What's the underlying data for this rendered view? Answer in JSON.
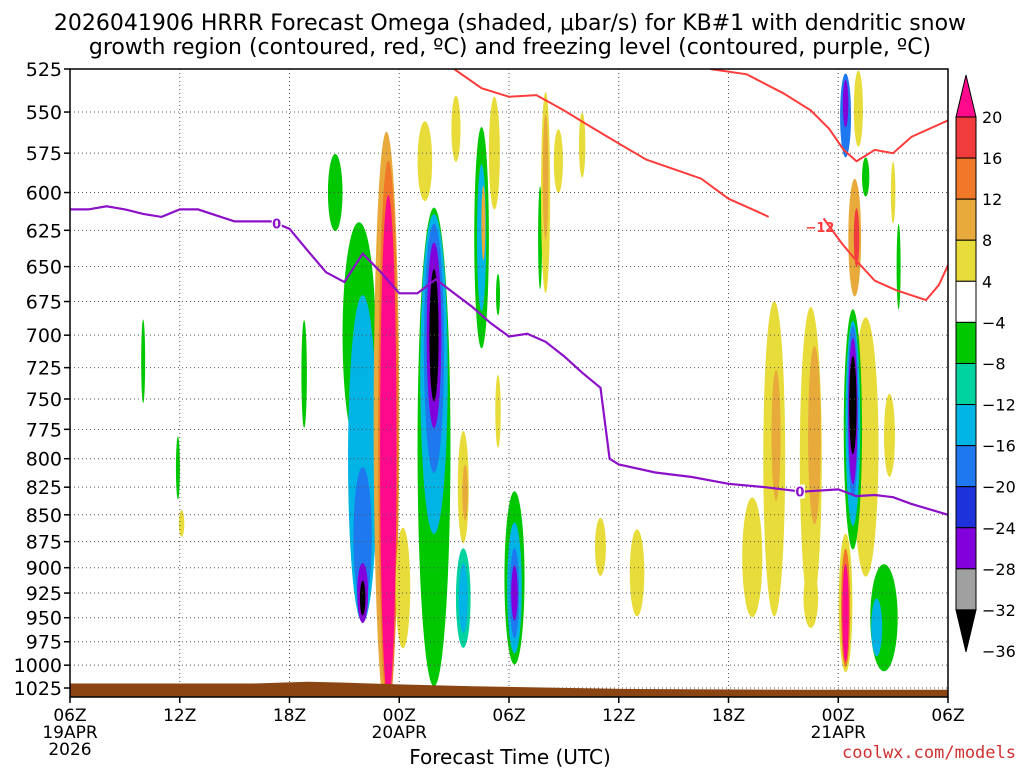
{
  "chart_data": {
    "type": "heatmap",
    "title_line1": "2026041906 HRRR Forecast Omega (shaded, μbar/s) for KB#1 with dendritic snow",
    "title_line2": "growth region (contoured, red, ºC) and freezing level (contoured, purple, ºC)",
    "xlabel": "Forecast Time (UTC)",
    "watermark": "coolwx.com/models",
    "x_range_hours": [
      0,
      48
    ],
    "x_ticks": [
      {
        "h": 0,
        "label": "06Z",
        "sub1": "19APR",
        "sub2": "2026"
      },
      {
        "h": 6,
        "label": "12Z"
      },
      {
        "h": 12,
        "label": "18Z"
      },
      {
        "h": 18,
        "label": "00Z",
        "sub1": "20APR"
      },
      {
        "h": 24,
        "label": "06Z"
      },
      {
        "h": 30,
        "label": "12Z"
      },
      {
        "h": 36,
        "label": "18Z"
      },
      {
        "h": 42,
        "label": "00Z",
        "sub1": "21APR"
      },
      {
        "h": 48,
        "label": "06Z"
      }
    ],
    "y_levels_hpa": [
      525,
      550,
      575,
      600,
      625,
      650,
      675,
      700,
      725,
      750,
      775,
      800,
      825,
      850,
      875,
      900,
      925,
      950,
      975,
      1000,
      1025
    ],
    "colorbar": {
      "labels": [
        "20",
        "16",
        "12",
        "8",
        "4",
        "−4",
        "−8",
        "−12",
        "−16",
        "−20",
        "−24",
        "−28",
        "−32",
        "−36"
      ],
      "colors": [
        "#ff0a8c",
        "#f03c3c",
        "#f07828",
        "#e8aa3a",
        "#e8dc3a",
        "#ffffff",
        "#00c800",
        "#00d2a0",
        "#00b4e6",
        "#1e78f0",
        "#1e32dc",
        "#8200dc",
        "#a0a0a0",
        "#000000"
      ]
    },
    "omega_cells": [
      {
        "h": 4.0,
        "p": 720,
        "dh": 0.2,
        "dp": 65,
        "v": -5
      },
      {
        "h": 5.9,
        "p": 808,
        "dh": 0.15,
        "dp": 55,
        "v": -5
      },
      {
        "h": 6.1,
        "p": 858,
        "dh": 0.3,
        "dp": 25,
        "v": 5
      },
      {
        "h": 12.8,
        "p": 730,
        "dh": 0.3,
        "dp": 85,
        "v": -5
      },
      {
        "h": 14.5,
        "p": 600,
        "dh": 0.8,
        "dp": 50,
        "v": -5
      },
      {
        "h": 15.8,
        "p": 700,
        "dh": 1.8,
        "dp": 170,
        "v": -6
      },
      {
        "h": 16.0,
        "p": 800,
        "dh": 1.6,
        "dp": 280,
        "v": -12
      },
      {
        "h": 16.0,
        "p": 870,
        "dh": 1.0,
        "dp": 130,
        "v": -18
      },
      {
        "h": 16.0,
        "p": 925,
        "dh": 0.6,
        "dp": 60,
        "v": -30
      },
      {
        "h": 16.0,
        "p": 930,
        "dh": 0.3,
        "dp": 35,
        "v": -38
      },
      {
        "h": 17.3,
        "p": 770,
        "dh": 1.4,
        "dp": 470,
        "v": 8
      },
      {
        "h": 17.4,
        "p": 780,
        "dh": 1.1,
        "dp": 450,
        "v": 14
      },
      {
        "h": 17.4,
        "p": 790,
        "dh": 0.9,
        "dp": 420,
        "v": 22
      },
      {
        "h": 19.4,
        "p": 580,
        "dh": 0.8,
        "dp": 50,
        "v": 5
      },
      {
        "h": 18.2,
        "p": 920,
        "dh": 0.8,
        "dp": 120,
        "v": 5
      },
      {
        "h": 19.9,
        "p": 790,
        "dh": 1.8,
        "dp": 400,
        "v": -6
      },
      {
        "h": 19.9,
        "p": 730,
        "dh": 1.5,
        "dp": 250,
        "v": -12
      },
      {
        "h": 19.9,
        "p": 710,
        "dh": 1.1,
        "dp": 190,
        "v": -18
      },
      {
        "h": 19.9,
        "p": 700,
        "dh": 0.8,
        "dp": 140,
        "v": -24
      },
      {
        "h": 19.9,
        "p": 700,
        "dh": 0.6,
        "dp": 110,
        "v": -30
      },
      {
        "h": 19.9,
        "p": 700,
        "dh": 0.5,
        "dp": 100,
        "v": -38
      },
      {
        "h": 21.5,
        "p": 825,
        "dh": 0.6,
        "dp": 100,
        "v": 5
      },
      {
        "h": 21.6,
        "p": 830,
        "dh": 0.3,
        "dp": 50,
        "v": 10
      },
      {
        "h": 21.1,
        "p": 560,
        "dh": 0.5,
        "dp": 40,
        "v": 5
      },
      {
        "h": 21.5,
        "p": 930,
        "dh": 0.8,
        "dp": 100,
        "v": -8
      },
      {
        "h": 21.5,
        "p": 930,
        "dh": 0.5,
        "dp": 70,
        "v": -14
      },
      {
        "h": 22.5,
        "p": 630,
        "dh": 0.8,
        "dp": 150,
        "v": -6
      },
      {
        "h": 22.5,
        "p": 630,
        "dh": 0.5,
        "dp": 100,
        "v": -14
      },
      {
        "h": 22.6,
        "p": 620,
        "dh": 0.2,
        "dp": 50,
        "v": 10
      },
      {
        "h": 23.2,
        "p": 575,
        "dh": 0.6,
        "dp": 70,
        "v": 5
      },
      {
        "h": 23.4,
        "p": 670,
        "dh": 0.2,
        "dp": 30,
        "v": -5
      },
      {
        "h": 23.4,
        "p": 760,
        "dh": 0.3,
        "dp": 60,
        "v": 5
      },
      {
        "h": 24.3,
        "p": 910,
        "dh": 1.1,
        "dp": 170,
        "v": -6
      },
      {
        "h": 24.3,
        "p": 920,
        "dh": 0.8,
        "dp": 130,
        "v": -12
      },
      {
        "h": 24.3,
        "p": 925,
        "dh": 0.5,
        "dp": 90,
        "v": -18
      },
      {
        "h": 24.3,
        "p": 925,
        "dh": 0.35,
        "dp": 55,
        "v": -24
      },
      {
        "h": 25.7,
        "p": 630,
        "dh": 0.15,
        "dp": 70,
        "v": -5
      },
      {
        "h": 26.0,
        "p": 600,
        "dh": 0.5,
        "dp": 130,
        "v": 5
      },
      {
        "h": 26.0,
        "p": 590,
        "dh": 0.3,
        "dp": 80,
        "v": 10
      },
      {
        "h": 26.7,
        "p": 580,
        "dh": 0.5,
        "dp": 40,
        "v": 5
      },
      {
        "h": 28.0,
        "p": 570,
        "dh": 0.35,
        "dp": 40,
        "v": 5
      },
      {
        "h": 29.0,
        "p": 880,
        "dh": 0.6,
        "dp": 55,
        "v": 5
      },
      {
        "h": 31.0,
        "p": 905,
        "dh": 0.8,
        "dp": 85,
        "v": 5
      },
      {
        "h": 37.3,
        "p": 890,
        "dh": 1.1,
        "dp": 115,
        "v": 5
      },
      {
        "h": 38.5,
        "p": 800,
        "dh": 1.2,
        "dp": 270,
        "v": 5
      },
      {
        "h": 38.6,
        "p": 780,
        "dh": 0.5,
        "dp": 110,
        "v": 10
      },
      {
        "h": 40.5,
        "p": 800,
        "dh": 1.2,
        "dp": 260,
        "v": 5
      },
      {
        "h": 40.7,
        "p": 780,
        "dh": 0.7,
        "dp": 150,
        "v": 10
      },
      {
        "h": 40.5,
        "p": 930,
        "dh": 0.8,
        "dp": 60,
        "v": 5
      },
      {
        "h": 42.4,
        "p": 552,
        "dh": 0.6,
        "dp": 50,
        "v": -18
      },
      {
        "h": 42.4,
        "p": 545,
        "dh": 0.3,
        "dp": 28,
        "v": -26
      },
      {
        "h": 43.1,
        "p": 548,
        "dh": 0.5,
        "dp": 45,
        "v": 6
      },
      {
        "h": 43.5,
        "p": 590,
        "dh": 0.4,
        "dp": 25,
        "v": -6
      },
      {
        "h": 42.9,
        "p": 630,
        "dh": 0.7,
        "dp": 80,
        "v": 10
      },
      {
        "h": 43.0,
        "p": 630,
        "dh": 0.3,
        "dp": 40,
        "v": 18
      },
      {
        "h": 43.5,
        "p": 790,
        "dh": 1.4,
        "dp": 220,
        "v": 5
      },
      {
        "h": 42.8,
        "p": 775,
        "dh": 1.0,
        "dp": 200,
        "v": -6
      },
      {
        "h": 42.8,
        "p": 770,
        "dh": 0.8,
        "dp": 170,
        "v": -12
      },
      {
        "h": 42.8,
        "p": 760,
        "dh": 0.6,
        "dp": 140,
        "v": -18
      },
      {
        "h": 42.8,
        "p": 760,
        "dh": 0.5,
        "dp": 120,
        "v": -26
      },
      {
        "h": 42.8,
        "p": 755,
        "dh": 0.4,
        "dp": 80,
        "v": -38
      },
      {
        "h": 45.3,
        "p": 650,
        "dh": 0.2,
        "dp": 60,
        "v": -5
      },
      {
        "h": 45.0,
        "p": 600,
        "dh": 0.25,
        "dp": 40,
        "v": 5
      },
      {
        "h": 44.8,
        "p": 780,
        "dh": 0.6,
        "dp": 70,
        "v": 5
      },
      {
        "h": 42.4,
        "p": 935,
        "dh": 0.75,
        "dp": 140,
        "v": 6
      },
      {
        "h": 42.4,
        "p": 940,
        "dh": 0.5,
        "dp": 120,
        "v": 14
      },
      {
        "h": 42.4,
        "p": 945,
        "dh": 0.35,
        "dp": 100,
        "v": 22
      },
      {
        "h": 44.5,
        "p": 950,
        "dh": 1.5,
        "dp": 110,
        "v": -6
      },
      {
        "h": 44.1,
        "p": 960,
        "dh": 0.6,
        "dp": 60,
        "v": -12
      }
    ],
    "freezing_level": {
      "label": "0",
      "label_positions_h": [
        11.3,
        39.9
      ],
      "points": [
        [
          0,
          611
        ],
        [
          1,
          611
        ],
        [
          2,
          609
        ],
        [
          3,
          611
        ],
        [
          4,
          614
        ],
        [
          5,
          616
        ],
        [
          6,
          611
        ],
        [
          7,
          611
        ],
        [
          8,
          615
        ],
        [
          9,
          619
        ],
        [
          10,
          619
        ],
        [
          11,
          619
        ],
        [
          12,
          624
        ],
        [
          13,
          639
        ],
        [
          14,
          654
        ],
        [
          15,
          661
        ],
        [
          16,
          641
        ],
        [
          17,
          654
        ],
        [
          18,
          669
        ],
        [
          19,
          669
        ],
        [
          20,
          659
        ],
        [
          21,
          669
        ],
        [
          22,
          679
        ],
        [
          23,
          691
        ],
        [
          24,
          701
        ],
        [
          25,
          699
        ],
        [
          26,
          705
        ],
        [
          27,
          716
        ],
        [
          28,
          729
        ],
        [
          29,
          741
        ],
        [
          29.5,
          800
        ],
        [
          30,
          805
        ],
        [
          32,
          812
        ],
        [
          34,
          816
        ],
        [
          36,
          822
        ],
        [
          38,
          825
        ],
        [
          40,
          829
        ],
        [
          42,
          827
        ],
        [
          43,
          833
        ],
        [
          44,
          832
        ],
        [
          45,
          834
        ],
        [
          46,
          840
        ],
        [
          48,
          850
        ]
      ]
    },
    "dgz_contours": [
      {
        "label": "−12",
        "label_h": 41.0,
        "points": [
          [
            21,
            525
          ],
          [
            22.5,
            536
          ],
          [
            24,
            541
          ],
          [
            25.5,
            540
          ],
          [
            27,
            549
          ],
          [
            28.5,
            559
          ],
          [
            30,
            569
          ],
          [
            31.5,
            579
          ],
          [
            33,
            585
          ],
          [
            34.5,
            591
          ],
          [
            36,
            604
          ],
          [
            37.5,
            612
          ],
          [
            38.2,
            616
          ]
        ]
      },
      {
        "label": "",
        "label_h": 0,
        "points": [
          [
            35,
            525
          ],
          [
            37,
            528
          ],
          [
            39,
            539
          ],
          [
            40.5,
            549
          ],
          [
            41.5,
            560
          ],
          [
            42.3,
            573
          ],
          [
            43,
            580
          ],
          [
            44,
            573
          ],
          [
            45,
            575
          ],
          [
            46,
            565
          ],
          [
            48,
            555
          ]
        ]
      },
      {
        "label": "",
        "label_h": 0,
        "points": [
          [
            41.2,
            617
          ],
          [
            42.2,
            634
          ],
          [
            43,
            646
          ],
          [
            44,
            660
          ],
          [
            45.2,
            667
          ],
          [
            46.8,
            674
          ],
          [
            47.5,
            663
          ],
          [
            48,
            649
          ]
        ]
      }
    ],
    "terrain": {
      "color": "#8b4513",
      "top_points": [
        [
          0,
          1020
        ],
        [
          5,
          1020
        ],
        [
          10,
          1020
        ],
        [
          13,
          1018
        ],
        [
          15,
          1019
        ],
        [
          18,
          1021
        ],
        [
          22,
          1023
        ],
        [
          30,
          1026
        ],
        [
          40,
          1027
        ],
        [
          48,
          1027
        ]
      ]
    }
  }
}
